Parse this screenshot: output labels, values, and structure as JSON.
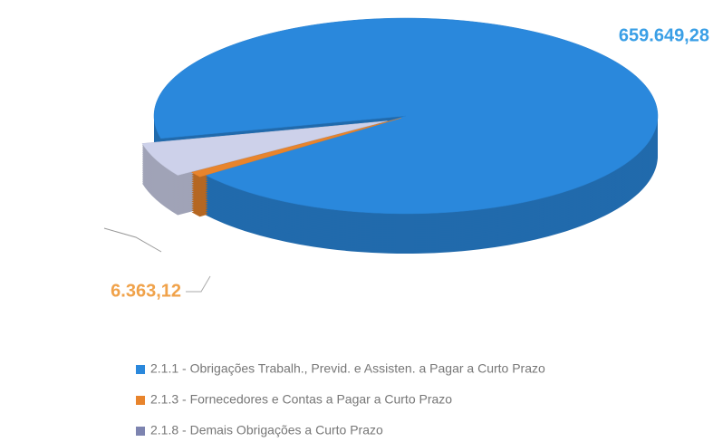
{
  "chart_data": {
    "type": "pie",
    "categories": [
      "2.1.1 - Obrigações Trabalh., Previd. e Assisten. a Pagar a Curto Prazo",
      "2.1.3 - Fornecedores e Contas a Pagar a Curto Prazo",
      "2.1.8 - Demais Obrigações a Curto Prazo"
    ],
    "values": [
      659649.28,
      6363.12,
      40000
    ],
    "value_labels": [
      "659.649,28",
      "6.363,12",
      null
    ],
    "colors": [
      "#2a88dc",
      "#e8842c",
      "#cdd1ea"
    ]
  }
}
